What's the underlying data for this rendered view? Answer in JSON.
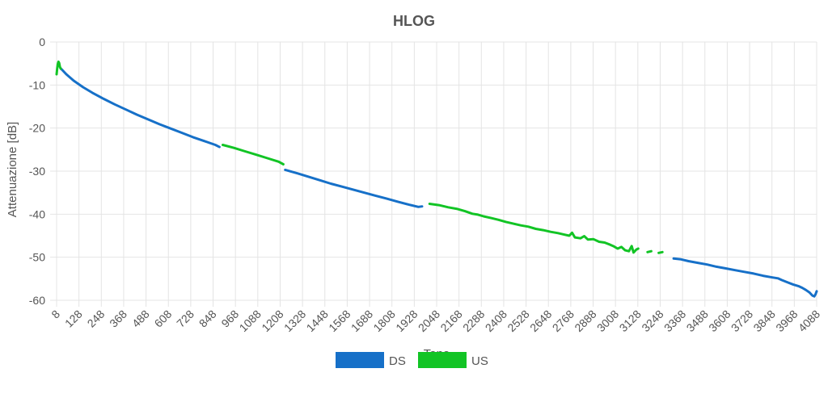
{
  "chart_data": {
    "type": "line",
    "title": "HLOG",
    "xlabel": "Tono",
    "ylabel": "Attenuazione [dB]",
    "xlim": [
      8,
      4088
    ],
    "ylim": [
      -60,
      0
    ],
    "grid": true,
    "legend": "bottom",
    "x_ticks": [
      "8",
      "128",
      "248",
      "368",
      "488",
      "608",
      "728",
      "848",
      "968",
      "1088",
      "1208",
      "1328",
      "1448",
      "1568",
      "1688",
      "1808",
      "1928",
      "2048",
      "2168",
      "2288",
      "2408",
      "2528",
      "2648",
      "2768",
      "2888",
      "3008",
      "3128",
      "3248",
      "3368",
      "3488",
      "3608",
      "3728",
      "3848",
      "3968",
      "4088"
    ],
    "y_ticks": [
      "0",
      "-10",
      "-20",
      "-30",
      "-40",
      "-50",
      "-60"
    ],
    "series": [
      {
        "name": "DS",
        "color": "#1670c8",
        "segments": [
          [
            [
              32,
              -6.2
            ],
            [
              60,
              -7.5
            ],
            [
              100,
              -9.0
            ],
            [
              150,
              -10.5
            ],
            [
              200,
              -11.8
            ],
            [
              260,
              -13.2
            ],
            [
              320,
              -14.5
            ],
            [
              380,
              -15.7
            ],
            [
              440,
              -16.9
            ],
            [
              500,
              -18.0
            ],
            [
              560,
              -19.1
            ],
            [
              620,
              -20.1
            ],
            [
              680,
              -21.1
            ],
            [
              740,
              -22.1
            ],
            [
              800,
              -23.0
            ],
            [
              860,
              -23.9
            ],
            [
              882,
              -24.4
            ]
          ],
          [
            [
              1235,
              -29.7
            ],
            [
              1300,
              -30.5
            ],
            [
              1360,
              -31.3
            ],
            [
              1420,
              -32.1
            ],
            [
              1480,
              -32.9
            ],
            [
              1540,
              -33.6
            ],
            [
              1600,
              -34.3
            ],
            [
              1660,
              -35.0
            ],
            [
              1720,
              -35.7
            ],
            [
              1780,
              -36.4
            ],
            [
              1840,
              -37.1
            ],
            [
              1900,
              -37.8
            ],
            [
              1950,
              -38.3
            ],
            [
              1970,
              -38.2
            ]
          ],
          [
            [
              3320,
              -50.3
            ],
            [
              3360,
              -50.5
            ],
            [
              3400,
              -50.9
            ],
            [
              3450,
              -51.3
            ],
            [
              3500,
              -51.7
            ],
            [
              3550,
              -52.2
            ],
            [
              3600,
              -52.6
            ],
            [
              3650,
              -53.0
            ],
            [
              3700,
              -53.4
            ],
            [
              3750,
              -53.8
            ],
            [
              3800,
              -54.3
            ],
            [
              3850,
              -54.7
            ],
            [
              3880,
              -54.9
            ],
            [
              3900,
              -55.3
            ],
            [
              3930,
              -55.8
            ],
            [
              3960,
              -56.3
            ],
            [
              3990,
              -56.7
            ],
            [
              4010,
              -57.1
            ],
            [
              4030,
              -57.6
            ],
            [
              4050,
              -58.2
            ],
            [
              4065,
              -58.9
            ],
            [
              4075,
              -59.1
            ],
            [
              4082,
              -58.6
            ],
            [
              4088,
              -57.9
            ]
          ]
        ]
      },
      {
        "name": "US",
        "color": "#12c425",
        "segments": [
          [
            [
              8,
              -7.5
            ],
            [
              11,
              -6.2
            ],
            [
              14,
              -5.2
            ],
            [
              18,
              -4.6
            ],
            [
              22,
              -4.9
            ],
            [
              26,
              -5.8
            ],
            [
              30,
              -6.2
            ]
          ],
          [
            [
              900,
              -23.9
            ],
            [
              960,
              -24.6
            ],
            [
              1020,
              -25.4
            ],
            [
              1080,
              -26.2
            ],
            [
              1140,
              -27.0
            ],
            [
              1200,
              -27.8
            ],
            [
              1225,
              -28.4
            ]
          ],
          [
            [
              2010,
              -37.6
            ],
            [
              2060,
              -37.9
            ],
            [
              2110,
              -38.4
            ],
            [
              2160,
              -38.8
            ],
            [
              2200,
              -39.3
            ],
            [
              2240,
              -39.9
            ],
            [
              2270,
              -40.1
            ],
            [
              2300,
              -40.5
            ],
            [
              2340,
              -40.9
            ],
            [
              2380,
              -41.3
            ],
            [
              2420,
              -41.8
            ],
            [
              2460,
              -42.2
            ],
            [
              2500,
              -42.6
            ],
            [
              2540,
              -42.9
            ],
            [
              2580,
              -43.4
            ],
            [
              2620,
              -43.7
            ],
            [
              2660,
              -44.1
            ],
            [
              2700,
              -44.4
            ],
            [
              2730,
              -44.7
            ],
            [
              2760,
              -45.0
            ],
            [
              2775,
              -44.3
            ],
            [
              2790,
              -45.4
            ],
            [
              2820,
              -45.6
            ],
            [
              2840,
              -45.1
            ],
            [
              2860,
              -45.9
            ],
            [
              2890,
              -45.8
            ],
            [
              2920,
              -46.4
            ],
            [
              2950,
              -46.6
            ],
            [
              2980,
              -47.1
            ],
            [
              3000,
              -47.5
            ],
            [
              3020,
              -48.0
            ],
            [
              3040,
              -47.6
            ],
            [
              3060,
              -48.4
            ],
            [
              3080,
              -48.6
            ],
            [
              3095,
              -47.4
            ],
            [
              3105,
              -48.9
            ],
            [
              3120,
              -48.2
            ],
            [
              3130,
              -48.0
            ]
          ],
          [
            [
              3180,
              -48.8
            ],
            [
              3200,
              -48.6
            ]
          ],
          [
            [
              3240,
              -49.0
            ],
            [
              3260,
              -48.8
            ]
          ]
        ]
      }
    ]
  }
}
